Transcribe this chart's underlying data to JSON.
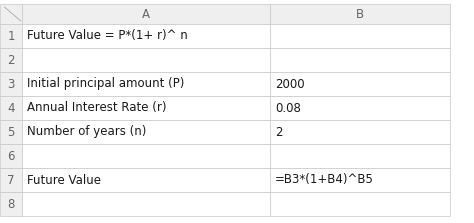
{
  "col_headers": [
    "A",
    "B"
  ],
  "row_numbers": [
    1,
    2,
    3,
    4,
    5,
    6,
    7,
    8
  ],
  "cells": {
    "A1": "Future Value = P*(1+ r)^ n",
    "A2": "",
    "A3": "Initial principal amount (P)",
    "A4": "Annual Interest Rate (r)",
    "A5": "Number of years (n)",
    "A6": "",
    "A7": "Future Value",
    "A8": "",
    "B1": "",
    "B2": "",
    "B3": "2000",
    "B4": "0.08",
    "B5": "2",
    "B6": "",
    "B7": "=B3*(1+B4)^B5",
    "B8": ""
  },
  "bg_color": "#ffffff",
  "header_bg": "#efefef",
  "grid_color": "#c8c8c8",
  "header_text_color": "#666666",
  "cell_text_color": "#1a1a1a",
  "font_size": 8.5,
  "bold_rows": []
}
